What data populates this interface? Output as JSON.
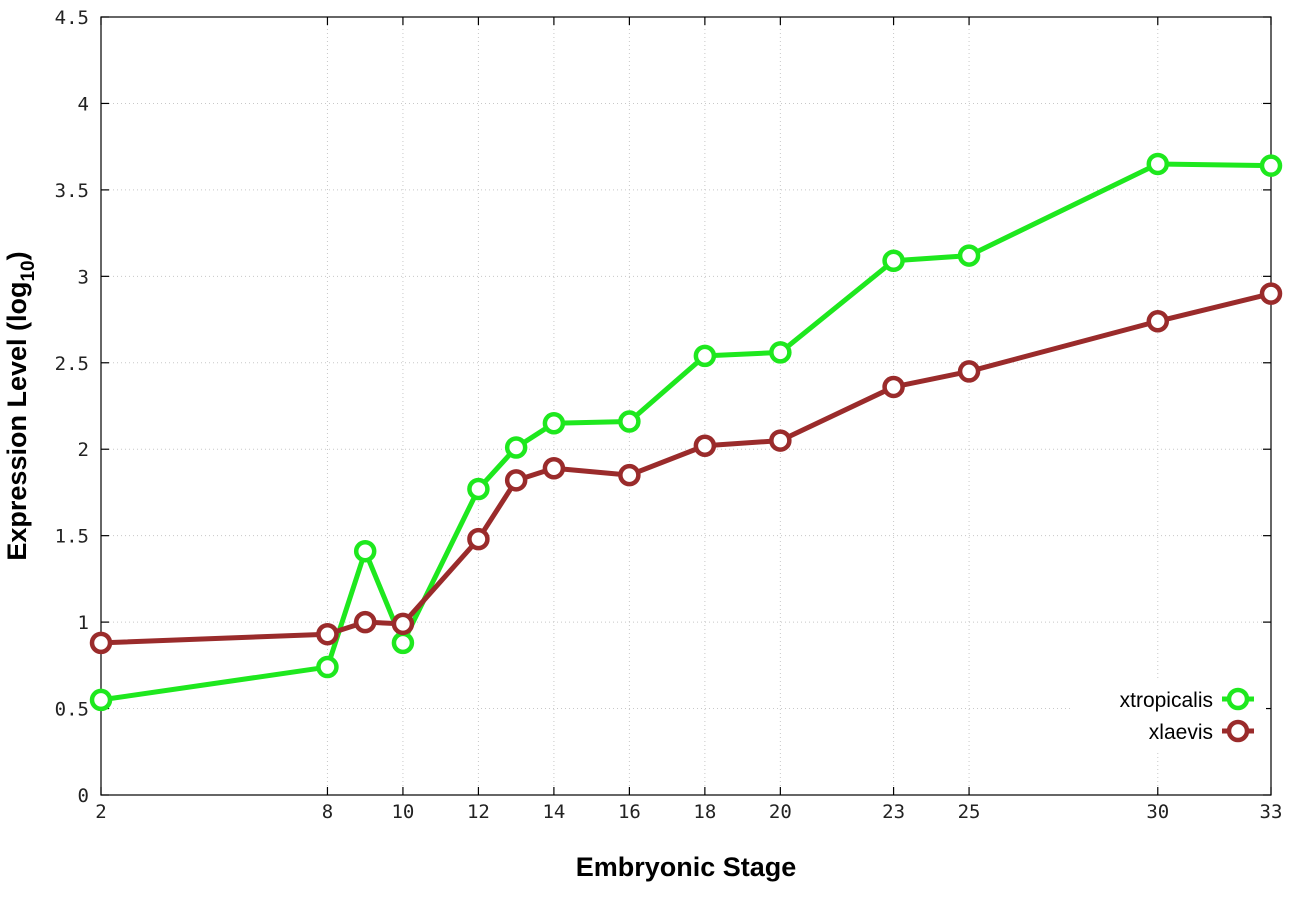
{
  "chart_data": {
    "type": "line",
    "xlabel": "Embryonic Stage",
    "ylabel": "Expression Level (log",
    "ylabel_subscript": "10",
    "ylabel_close": ")",
    "xlim": [
      2,
      33
    ],
    "ylim": [
      0,
      4.5
    ],
    "x_tick_labels": [
      "2",
      "8",
      "10",
      "12",
      "14",
      "16",
      "18",
      "20",
      "23",
      "25",
      "30",
      "33"
    ],
    "y_ticks": [
      0,
      0.5,
      1,
      1.5,
      2,
      2.5,
      3,
      3.5,
      4,
      4.5
    ],
    "y_tick_labels": [
      "0",
      "0.5",
      "1",
      "1.5",
      "2",
      "2.5",
      "3",
      "3.5",
      "4",
      "4.5"
    ],
    "grid": true,
    "legend_position": "bottom-right",
    "series": [
      {
        "name": "xtropicalis",
        "color": "#1ee81e",
        "points": [
          {
            "x": 2,
            "y": 0.55
          },
          {
            "x": 8,
            "y": 0.74
          },
          {
            "x": 9,
            "y": 1.41
          },
          {
            "x": 10,
            "y": 0.88
          },
          {
            "x": 12,
            "y": 1.77
          },
          {
            "x": 13,
            "y": 2.01
          },
          {
            "x": 14,
            "y": 2.15
          },
          {
            "x": 16,
            "y": 2.16
          },
          {
            "x": 18,
            "y": 2.54
          },
          {
            "x": 20,
            "y": 2.56
          },
          {
            "x": 23,
            "y": 3.09
          },
          {
            "x": 25,
            "y": 3.12
          },
          {
            "x": 30,
            "y": 3.65
          },
          {
            "x": 33,
            "y": 3.64
          }
        ]
      },
      {
        "name": "xlaevis",
        "color": "#9a2b2b",
        "points": [
          {
            "x": 2,
            "y": 0.88
          },
          {
            "x": 8,
            "y": 0.93
          },
          {
            "x": 9,
            "y": 1.0
          },
          {
            "x": 10,
            "y": 0.99
          },
          {
            "x": 12,
            "y": 1.48
          },
          {
            "x": 13,
            "y": 1.82
          },
          {
            "x": 14,
            "y": 1.89
          },
          {
            "x": 16,
            "y": 1.85
          },
          {
            "x": 18,
            "y": 2.02
          },
          {
            "x": 20,
            "y": 2.05
          },
          {
            "x": 23,
            "y": 2.36
          },
          {
            "x": 25,
            "y": 2.45
          },
          {
            "x": 30,
            "y": 2.74
          },
          {
            "x": 33,
            "y": 2.9
          }
        ]
      }
    ]
  }
}
